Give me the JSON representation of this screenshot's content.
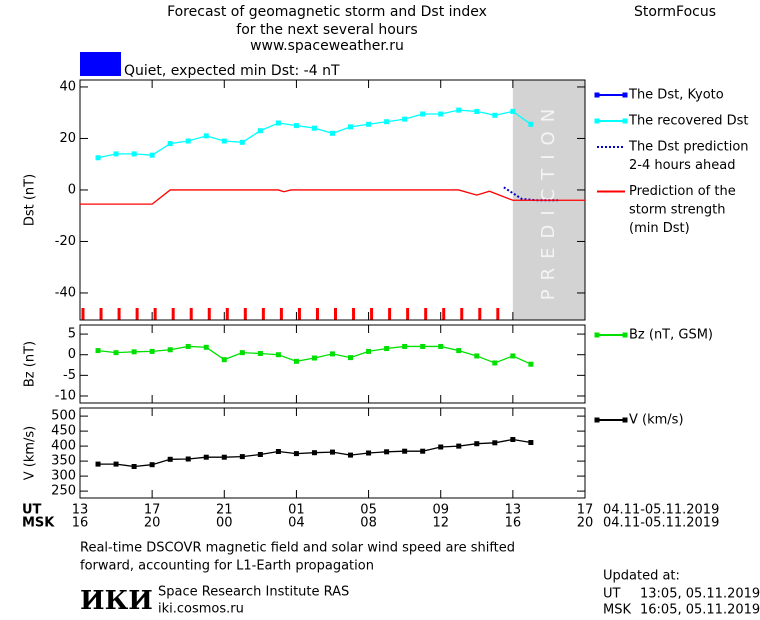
{
  "header": {
    "title": [
      "Forecast of geomagnetic storm and Dst index",
      "for the next several hours",
      "www.spaceweather.ru"
    ],
    "brand": "StormFocus"
  },
  "status": {
    "text": "Quiet, expected min Dst: -4 nT",
    "color": "#0000ff"
  },
  "chart_data": [
    {
      "type": "line",
      "y_label": "Dst (nT)",
      "xlim": [
        0,
        28
      ],
      "ylim": [
        -50.5,
        42.7
      ],
      "yticks": [
        -40,
        -20,
        0,
        20,
        40
      ],
      "prediction": {
        "label": "PREDICTION",
        "xlim": [
          24,
          28
        ],
        "color": "#d3d3d3"
      },
      "series": [
        {
          "name": [
            "The Dst, Kyoto"
          ],
          "color": "#0000ff",
          "marker": "square",
          "x": [],
          "values": []
        },
        {
          "name": [
            "The recovered Dst"
          ],
          "color": "#00ffff",
          "marker": "square",
          "x": [
            1,
            2,
            3,
            4,
            5,
            6,
            7,
            8,
            9,
            10,
            11,
            12,
            13,
            14,
            15,
            16,
            17,
            18,
            19,
            20,
            21,
            22,
            23,
            24,
            25
          ],
          "values": [
            12.5,
            14,
            14,
            13.5,
            18,
            19,
            21,
            19,
            18.5,
            23,
            26,
            25,
            24,
            22,
            24.5,
            25.5,
            26.5,
            27.5,
            29.5,
            29.5,
            31,
            30.5,
            29,
            30.5,
            25.5
          ]
        },
        {
          "name": [
            "The Dst prediction",
            "2-4 hours ahead"
          ],
          "color": "#0000cc",
          "dash": true,
          "x": [
            23.5,
            24.5,
            25.3,
            26.5
          ],
          "values": [
            1,
            -3.5,
            -4,
            -4
          ]
        },
        {
          "name": [
            "Prediction of the",
            "storm strength",
            "(min Dst)"
          ],
          "color": "#ff0000",
          "x": [
            0,
            4,
            5,
            11,
            11.3,
            11.7,
            21,
            22,
            22.7,
            24,
            28
          ],
          "values": [
            -5.5,
            -5.5,
            0,
            0,
            -0.7,
            0,
            0,
            -2,
            -0.5,
            -4,
            -4
          ]
        }
      ]
    },
    {
      "type": "line",
      "y_label": "Bz (nT)",
      "xlim": [
        0,
        28
      ],
      "ylim": [
        -11.7,
        7.2
      ],
      "yticks": [
        -10,
        -5,
        0,
        5
      ],
      "series": [
        {
          "name": [
            "Bz (nT, GSM)"
          ],
          "color": "#00e000",
          "marker": "square",
          "x": [
            1,
            2,
            3,
            4,
            5,
            6,
            7,
            8,
            9,
            10,
            11,
            12,
            13,
            14,
            15,
            16,
            17,
            18,
            19,
            20,
            21,
            22,
            23,
            24,
            25
          ],
          "values": [
            1,
            0.5,
            0.7,
            0.8,
            1.2,
            2,
            1.8,
            -1.2,
            0.5,
            0.3,
            0,
            -1.6,
            -0.8,
            0.2,
            -0.7,
            0.8,
            1.5,
            2,
            2,
            2,
            1,
            -0.3,
            -2,
            -0.3,
            -2.3
          ]
        }
      ]
    },
    {
      "type": "line",
      "y_label": "V (km/s)",
      "xlim": [
        0,
        28
      ],
      "ylim": [
        227,
        527
      ],
      "yticks": [
        250,
        300,
        350,
        400,
        450,
        500
      ],
      "x_label": "UT",
      "x2_label": "MSK",
      "x_range": "04.11-05.11.2019",
      "x2_range": "04.11-05.11.2019",
      "xticks": [
        {
          "value": 0,
          "label": "13"
        },
        {
          "value": 4,
          "label": "17"
        },
        {
          "value": 8,
          "label": "21"
        },
        {
          "value": 12,
          "label": "01"
        },
        {
          "value": 16,
          "label": "05"
        },
        {
          "value": 20,
          "label": "09"
        },
        {
          "value": 24,
          "label": "13"
        },
        {
          "value": 28,
          "label": "17"
        }
      ],
      "x2ticks": [
        {
          "value": 0,
          "label": "16"
        },
        {
          "value": 4,
          "label": "20"
        },
        {
          "value": 8,
          "label": "00"
        },
        {
          "value": 12,
          "label": "04"
        },
        {
          "value": 16,
          "label": "08"
        },
        {
          "value": 20,
          "label": "12"
        },
        {
          "value": 24,
          "label": "16"
        },
        {
          "value": 28,
          "label": "20"
        }
      ],
      "series": [
        {
          "name": [
            "V (km/s)"
          ],
          "color": "#000000",
          "marker": "square",
          "x": [
            1,
            2,
            3,
            4,
            5,
            6,
            7,
            8,
            9,
            10,
            11,
            12,
            13,
            14,
            15,
            16,
            17,
            18,
            19,
            20,
            21,
            22,
            23,
            24,
            25
          ],
          "values": [
            340,
            340,
            332,
            338,
            356,
            357,
            363,
            363,
            365,
            372,
            382,
            375,
            378,
            380,
            370,
            377,
            381,
            383,
            383,
            397,
            400,
            408,
            411,
            422,
            412
          ]
        }
      ]
    }
  ],
  "footer": {
    "note": [
      "Real-time DSCOVR magnetic field and solar wind speed are shifted",
      "forward, accounting for L1-Earth propagation"
    ],
    "logo": "ИКИ",
    "institute": "Space Research Institute RAS",
    "site": "iki.cosmos.ru",
    "updated": {
      "title": "Updated at:",
      "ut_label": "UT",
      "ut": "13:05, 05.11.2019",
      "msk_label": "MSK",
      "msk": "16:05, 05.11.2019"
    }
  }
}
